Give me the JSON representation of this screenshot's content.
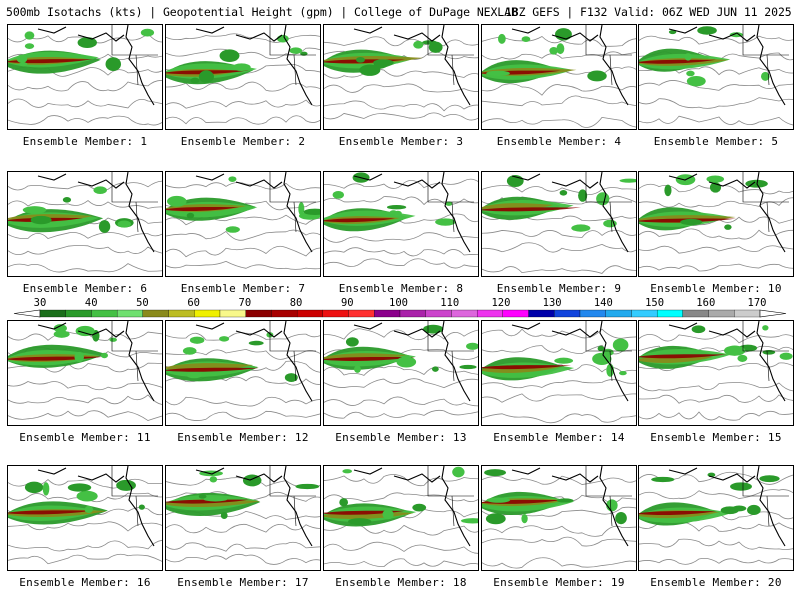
{
  "header": {
    "product": "500mb Isotachs (kts) | Geopotential Height (gpm) | College of DuPage NEXLAB",
    "run": "18Z GEFS | F132 Valid: 06Z WED JUN 11 2025"
  },
  "members": [
    {
      "label": "Ensemble Member: 1"
    },
    {
      "label": "Ensemble Member: 2"
    },
    {
      "label": "Ensemble Member: 3"
    },
    {
      "label": "Ensemble Member: 4"
    },
    {
      "label": "Ensemble Member: 5"
    },
    {
      "label": "Ensemble Member: 6"
    },
    {
      "label": "Ensemble Member: 7"
    },
    {
      "label": "Ensemble Member: 8"
    },
    {
      "label": "Ensemble Member: 9"
    },
    {
      "label": "Ensemble Member: 10"
    },
    {
      "label": "Ensemble Member: 11"
    },
    {
      "label": "Ensemble Member: 12"
    },
    {
      "label": "Ensemble Member: 13"
    },
    {
      "label": "Ensemble Member: 14"
    },
    {
      "label": "Ensemble Member: 15"
    },
    {
      "label": "Ensemble Member: 16"
    },
    {
      "label": "Ensemble Member: 17"
    },
    {
      "label": "Ensemble Member: 18"
    },
    {
      "label": "Ensemble Member: 19"
    },
    {
      "label": "Ensemble Member: 20"
    }
  ],
  "colorbar": {
    "ticks": [
      "30",
      "40",
      "50",
      "60",
      "70",
      "80",
      "90",
      "100",
      "110",
      "120",
      "130",
      "140",
      "150",
      "160",
      "170"
    ],
    "colors": [
      "#1a6e1a",
      "#2a9a2a",
      "#44c044",
      "#70e070",
      "#8a8a1a",
      "#bcbc22",
      "#f0f000",
      "#f8f88a",
      "#8b0000",
      "#a80000",
      "#cc0000",
      "#ee1111",
      "#ff3030",
      "#8b008b",
      "#aa22aa",
      "#cc44cc",
      "#dd66dd",
      "#ee33ee",
      "#ff00ff",
      "#0000aa",
      "#1144dd",
      "#2288ee",
      "#22aaee",
      "#33ccff",
      "#00ffff",
      "#888888",
      "#aaaaaa",
      "#cccccc"
    ]
  }
}
